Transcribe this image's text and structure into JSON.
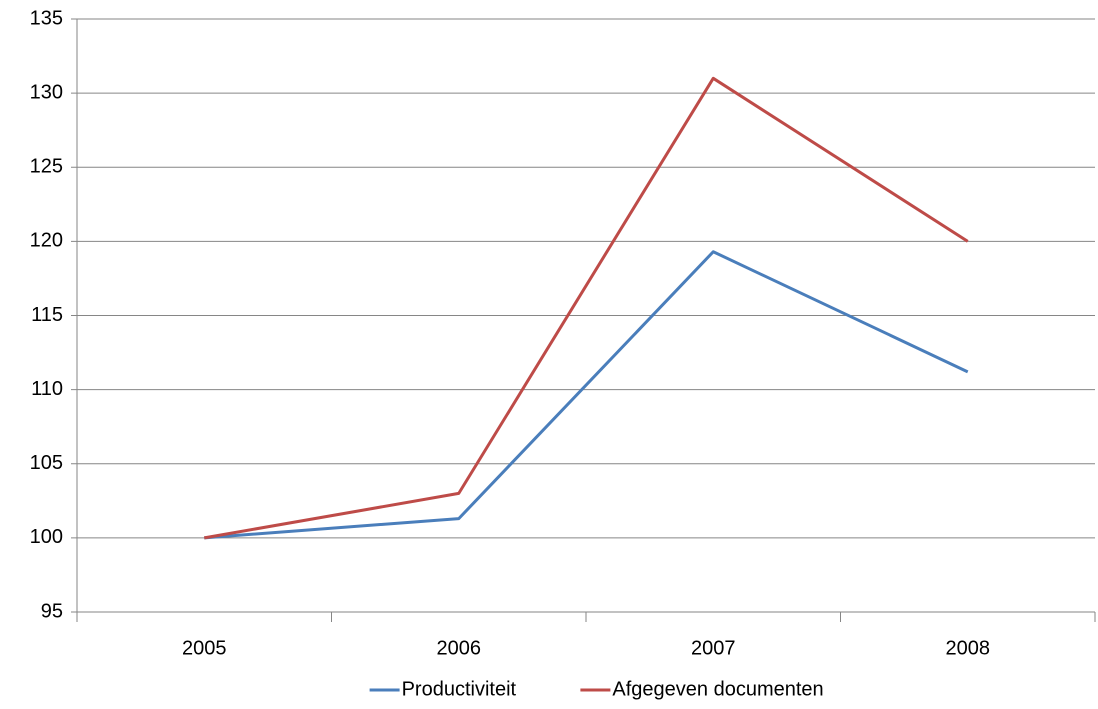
{
  "chart_data": {
    "type": "line",
    "categories": [
      "2005",
      "2006",
      "2007",
      "2008"
    ],
    "series": [
      {
        "name": "Productiviteit",
        "color": "#4a7ebb",
        "values": [
          100,
          101.3,
          119.3,
          111.2
        ]
      },
      {
        "name": "Afgegeven documenten",
        "color": "#be4b48",
        "values": [
          100,
          103,
          131,
          120
        ]
      }
    ],
    "ylim": [
      95,
      135
    ],
    "yticks": [
      95,
      100,
      105,
      110,
      115,
      120,
      125,
      130,
      135
    ],
    "grid": true,
    "legend": "bottom"
  }
}
